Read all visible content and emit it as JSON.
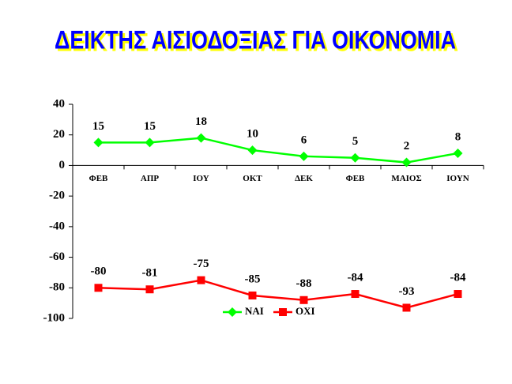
{
  "chart_data": {
    "type": "line",
    "title": "ΔΕΙΚΤΗΣ ΑΙΣΙΟΔΟΞΙΑΣ ΓΙΑ ΟΙΚΟΝΟΜΙΑ",
    "categories": [
      "ΦΕΒ",
      "ΑΠΡ",
      "ΙΟΥ",
      "ΟΚΤ",
      "ΔΕΚ",
      "ΦΕΒ",
      "ΜΑΙΟΣ",
      "ΙΟΥΝ"
    ],
    "series": [
      {
        "name": "ΝΑΙ",
        "color": "#00ff00",
        "marker": "diamond",
        "values": [
          15,
          15,
          18,
          10,
          6,
          5,
          2,
          8
        ]
      },
      {
        "name": "ΟΧΙ",
        "color": "#ff0000",
        "marker": "square",
        "values": [
          -80,
          -81,
          -75,
          -85,
          -88,
          -84,
          -93,
          -84
        ]
      }
    ],
    "ylim": [
      -100,
      40
    ],
    "yticks": [
      -100,
      -80,
      -60,
      -40,
      -20,
      0,
      20,
      40
    ],
    "legend": "bottom"
  }
}
